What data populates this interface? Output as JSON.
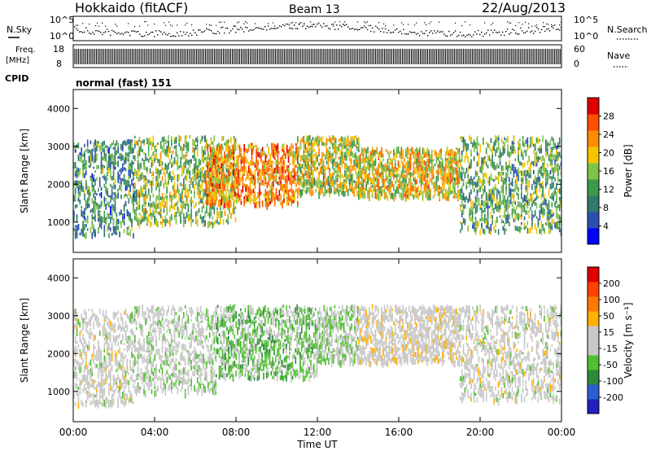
{
  "header": {
    "station": "Hokkaido (fitACF)",
    "beam": "Beam 13",
    "date": "22/Aug/2013"
  },
  "panels": {
    "nsky": {
      "label": "N.Sky",
      "right_label": "N.Search",
      "ticks": [
        "10^5",
        "10^0"
      ]
    },
    "freq": {
      "label_line1": "Freq.",
      "label_line2": "[MHz]",
      "right_label": "Nave",
      "left_ticks": [
        "18",
        "8"
      ],
      "right_ticks": [
        "60",
        "0"
      ]
    },
    "cpid": {
      "label": "CPID",
      "value": "normal (fast) 151"
    }
  },
  "colors": {
    "power_scale": [
      "#0000ff",
      "#2a4fb0",
      "#2f7a6a",
      "#3d9a4a",
      "#7ec24a",
      "#f5c400",
      "#ff8c00",
      "#ff5000",
      "#e00000"
    ],
    "velocity_scale": [
      "#2020c0",
      "#2a5fd0",
      "#2e8a3a",
      "#50c030",
      "#c8c8c8",
      "#c8c8c8",
      "#ffb000",
      "#ff7800",
      "#ff4000",
      "#e00000"
    ]
  },
  "chart_data": [
    {
      "type": "heatmap",
      "name": "power",
      "ylabel": "Slant Range [km]",
      "xlabel": "Time UT",
      "ylim": [
        200,
        4500
      ],
      "xlim": [
        0,
        24
      ],
      "yticks": [
        1000,
        2000,
        3000,
        4000
      ],
      "xticks": [
        "00:00",
        "04:00",
        "08:00",
        "12:00",
        "16:00",
        "20:00",
        "00:00"
      ],
      "colorbar": {
        "label": "Power [dB]",
        "ticks": [
          "28",
          "24",
          "20",
          "16",
          "12",
          "8",
          "4"
        ],
        "range": [
          0,
          30
        ]
      },
      "echo_regions": [
        {
          "t": [
            0,
            3
          ],
          "range_km": [
            700,
            3200
          ],
          "value_db": 10
        },
        {
          "t": [
            3,
            8
          ],
          "range_km": [
            1000,
            3300
          ],
          "value_db": 14
        },
        {
          "t": [
            6.5,
            11
          ],
          "range_km": [
            1500,
            3100
          ],
          "value_db": 22
        },
        {
          "t": [
            11,
            14
          ],
          "range_km": [
            1800,
            3300
          ],
          "value_db": 16
        },
        {
          "t": [
            14,
            19
          ],
          "range_km": [
            1700,
            3000
          ],
          "value_db": 18
        },
        {
          "t": [
            19,
            24
          ],
          "range_km": [
            800,
            3300
          ],
          "value_db": 12
        }
      ]
    },
    {
      "type": "heatmap",
      "name": "velocity",
      "ylabel": "Slant Range [km]",
      "xlabel": "Time UT",
      "ylim": [
        200,
        4500
      ],
      "xlim": [
        0,
        24
      ],
      "yticks": [
        1000,
        2000,
        3000,
        4000
      ],
      "xticks": [
        "00:00",
        "04:00",
        "08:00",
        "12:00",
        "16:00",
        "20:00",
        "00:00"
      ],
      "colorbar": {
        "label": "Velocity [m s⁻¹]",
        "ticks": [
          "200",
          "100",
          "50",
          "15",
          "-15",
          "-50",
          "-100",
          "-200"
        ],
        "range": [
          -250,
          250
        ]
      },
      "echo_regions": [
        {
          "t": [
            0,
            3
          ],
          "range_km": [
            700,
            3200
          ],
          "value_ms": 0
        },
        {
          "t": [
            3,
            7
          ],
          "range_km": [
            1000,
            3300
          ],
          "value_ms": -20
        },
        {
          "t": [
            7,
            12
          ],
          "range_km": [
            1400,
            3300
          ],
          "value_ms": -60
        },
        {
          "t": [
            12,
            14
          ],
          "range_km": [
            1800,
            3300
          ],
          "value_ms": -30
        },
        {
          "t": [
            14,
            19
          ],
          "range_km": [
            1800,
            3300
          ],
          "value_ms": 10
        },
        {
          "t": [
            19,
            24
          ],
          "range_km": [
            800,
            3300
          ],
          "value_ms": 0
        }
      ]
    }
  ]
}
